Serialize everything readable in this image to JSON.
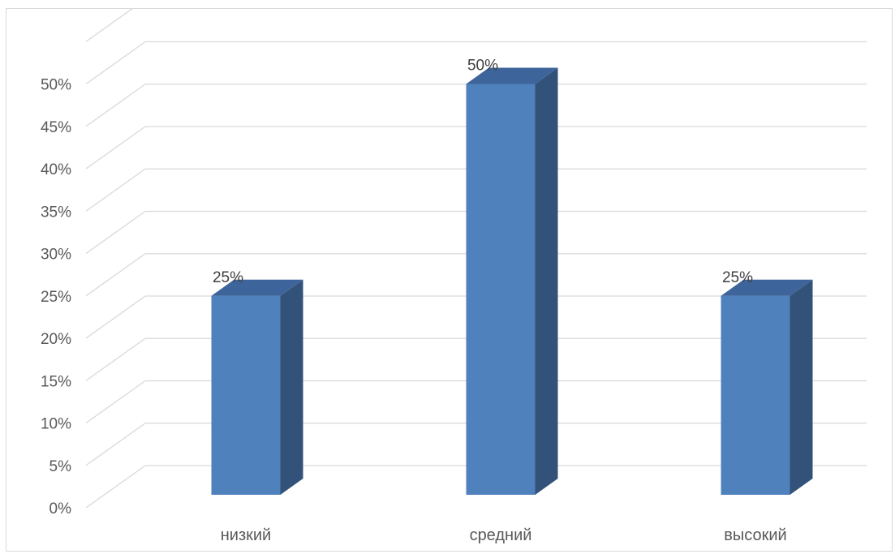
{
  "chart_data": {
    "type": "bar",
    "style": "3d-column",
    "categories": [
      "низкий",
      "средний",
      "высокий"
    ],
    "values": [
      25,
      50,
      25
    ],
    "data_labels": [
      "25%",
      "50%",
      "25%"
    ],
    "y_ticks": [
      0,
      5,
      10,
      15,
      20,
      25,
      30,
      35,
      40,
      45,
      50
    ],
    "y_tick_labels": [
      "0%",
      "5%",
      "10%",
      "15%",
      "20%",
      "25%",
      "30%",
      "35%",
      "40%",
      "45%",
      "50%"
    ],
    "ylim": [
      0,
      55
    ],
    "y_unit": "%",
    "grid": true,
    "legend": "none",
    "colors": {
      "front": "#4f81bd",
      "side": "#33527a",
      "top": "#3e659b",
      "grid": "#d9d9d9"
    }
  }
}
